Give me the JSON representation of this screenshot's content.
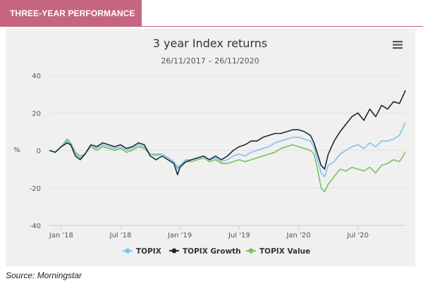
{
  "header": {
    "title": "THREE-YEAR PERFORMANCE"
  },
  "footer": {
    "source": "Source: Morningstar"
  },
  "colors": {
    "accent": "#c66582",
    "topix": "#7cc5e6",
    "topix_growth": "#1c2a36",
    "topix_value": "#7bbf5e"
  },
  "menu_icon": "hamburger-menu-icon",
  "chart_data": {
    "type": "line",
    "title": "3 year Index returns",
    "subtitle": "26/11/2017 – 26/11/2020",
    "xlabel": "",
    "ylabel": "%",
    "ylim": [
      -40,
      40
    ],
    "xlim": [
      2017.9,
      2020.9
    ],
    "yticks": [
      -40,
      -20,
      0,
      20,
      40
    ],
    "xticks": [
      {
        "label": "Jan '18",
        "value": 2018.0
      },
      {
        "label": "Jul '18",
        "value": 2018.5
      },
      {
        "label": "Jan '19",
        "value": 2019.0
      },
      {
        "label": "Jul '19",
        "value": 2019.5
      },
      {
        "label": "Jan '20",
        "value": 2020.0
      },
      {
        "label": "Jul '20",
        "value": 2020.5
      }
    ],
    "grid": true,
    "legend": "bottom-center",
    "series": [
      {
        "name": "TOPIX",
        "color_key": "topix",
        "x": [
          2017.9,
          2017.95,
          2018.0,
          2018.05,
          2018.08,
          2018.12,
          2018.16,
          2018.2,
          2018.25,
          2018.3,
          2018.35,
          2018.4,
          2018.45,
          2018.5,
          2018.55,
          2018.6,
          2018.65,
          2018.7,
          2018.75,
          2018.8,
          2018.85,
          2018.9,
          2018.95,
          2018.98,
          2019.0,
          2019.05,
          2019.1,
          2019.15,
          2019.2,
          2019.25,
          2019.3,
          2019.35,
          2019.4,
          2019.45,
          2019.5,
          2019.55,
          2019.6,
          2019.65,
          2019.7,
          2019.75,
          2019.8,
          2019.85,
          2019.9,
          2019.95,
          2020.0,
          2020.05,
          2020.1,
          2020.13,
          2020.16,
          2020.19,
          2020.22,
          2020.25,
          2020.3,
          2020.35,
          2020.4,
          2020.45,
          2020.5,
          2020.55,
          2020.6,
          2020.65,
          2020.7,
          2020.75,
          2020.8,
          2020.85,
          2020.88,
          2020.9
        ],
        "values": [
          0,
          -1,
          2,
          5,
          3,
          -2,
          -4,
          -2,
          2,
          1,
          3,
          2,
          1,
          2,
          0,
          1,
          3,
          2,
          -2,
          -3,
          -2,
          -4,
          -6,
          -10,
          -8,
          -5,
          -5,
          -4,
          -3,
          -5,
          -4,
          -6,
          -5,
          -3,
          -2,
          -3,
          -1,
          0,
          1,
          2,
          4,
          5,
          6,
          7,
          7,
          6,
          5,
          2,
          -5,
          -12,
          -14,
          -8,
          -6,
          -2,
          0,
          2,
          3,
          1,
          4,
          2,
          5,
          5,
          6,
          8,
          12,
          15
        ]
      },
      {
        "name": "TOPIX Growth",
        "color_key": "topix_growth",
        "x": [
          2017.9,
          2017.95,
          2018.0,
          2018.05,
          2018.08,
          2018.12,
          2018.16,
          2018.2,
          2018.25,
          2018.3,
          2018.35,
          2018.4,
          2018.45,
          2018.5,
          2018.55,
          2018.6,
          2018.65,
          2018.7,
          2018.75,
          2018.8,
          2018.85,
          2018.9,
          2018.95,
          2018.98,
          2019.0,
          2019.05,
          2019.1,
          2019.15,
          2019.2,
          2019.25,
          2019.3,
          2019.35,
          2019.4,
          2019.45,
          2019.5,
          2019.55,
          2019.6,
          2019.65,
          2019.7,
          2019.75,
          2019.8,
          2019.85,
          2019.9,
          2019.95,
          2020.0,
          2020.05,
          2020.1,
          2020.13,
          2020.16,
          2020.19,
          2020.22,
          2020.25,
          2020.3,
          2020.35,
          2020.4,
          2020.45,
          2020.5,
          2020.55,
          2020.6,
          2020.65,
          2020.7,
          2020.75,
          2020.8,
          2020.85,
          2020.88,
          2020.9
        ],
        "values": [
          0,
          -1,
          2,
          4,
          3,
          -3,
          -5,
          -2,
          3,
          2,
          4,
          3,
          2,
          3,
          1,
          2,
          4,
          3,
          -3,
          -5,
          -3,
          -5,
          -7,
          -13,
          -9,
          -6,
          -5,
          -4,
          -3,
          -5,
          -3,
          -5,
          -3,
          0,
          2,
          3,
          5,
          5,
          7,
          8,
          9,
          9,
          10,
          11,
          11,
          10,
          8,
          4,
          -2,
          -8,
          -10,
          -2,
          5,
          10,
          14,
          18,
          20,
          16,
          22,
          18,
          24,
          22,
          26,
          25,
          29,
          32
        ]
      },
      {
        "name": "TOPIX Value",
        "color_key": "topix_value",
        "x": [
          2017.9,
          2017.95,
          2018.0,
          2018.05,
          2018.08,
          2018.12,
          2018.16,
          2018.2,
          2018.25,
          2018.3,
          2018.35,
          2018.4,
          2018.45,
          2018.5,
          2018.55,
          2018.6,
          2018.65,
          2018.7,
          2018.75,
          2018.8,
          2018.85,
          2018.9,
          2018.95,
          2018.98,
          2019.0,
          2019.05,
          2019.1,
          2019.15,
          2019.2,
          2019.25,
          2019.3,
          2019.35,
          2019.4,
          2019.45,
          2019.5,
          2019.55,
          2019.6,
          2019.65,
          2019.7,
          2019.75,
          2019.8,
          2019.85,
          2019.9,
          2019.95,
          2020.0,
          2020.05,
          2020.1,
          2020.13,
          2020.16,
          2020.19,
          2020.22,
          2020.25,
          2020.3,
          2020.35,
          2020.4,
          2020.45,
          2020.5,
          2020.55,
          2020.6,
          2020.65,
          2020.7,
          2020.75,
          2020.8,
          2020.85,
          2020.88,
          2020.9
        ],
        "values": [
          0,
          -1,
          2,
          6,
          4,
          -1,
          -3,
          -2,
          2,
          0,
          2,
          1,
          0,
          1,
          -1,
          0,
          2,
          1,
          -2,
          -2,
          -2,
          -4,
          -6,
          -9,
          -8,
          -6,
          -6,
          -5,
          -4,
          -6,
          -5,
          -7,
          -7,
          -6,
          -5,
          -6,
          -5,
          -4,
          -3,
          -2,
          -1,
          1,
          2,
          3,
          2,
          1,
          0,
          -2,
          -10,
          -20,
          -22,
          -18,
          -14,
          -10,
          -11,
          -9,
          -10,
          -11,
          -9,
          -12,
          -8,
          -7,
          -5,
          -6,
          -3,
          -1
        ]
      }
    ]
  }
}
